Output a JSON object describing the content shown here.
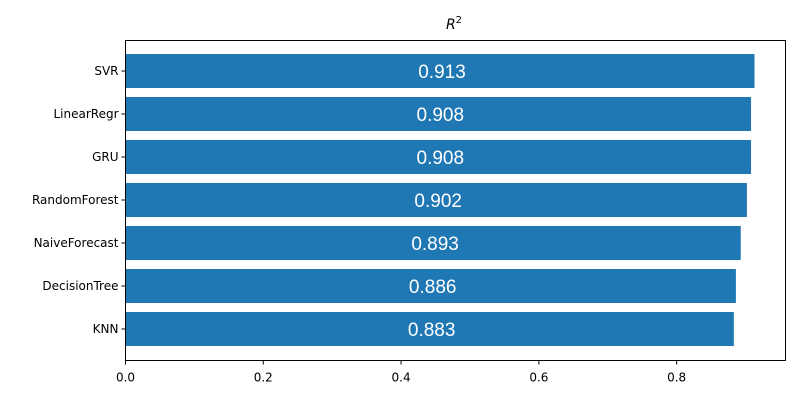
{
  "chart_data": {
    "type": "bar",
    "orientation": "horizontal",
    "title": "R",
    "title_superscript": "2",
    "categories": [
      "SVR",
      "LinearRegr",
      "GRU",
      "RandomForest",
      "NaiveForecast",
      "DecisionTree",
      "KNN"
    ],
    "values": [
      0.913,
      0.908,
      0.908,
      0.902,
      0.893,
      0.886,
      0.883
    ],
    "data_labels": [
      "0.913",
      "0.908",
      "0.908",
      "0.902",
      "0.893",
      "0.886",
      "0.883"
    ],
    "xlim": [
      0.0,
      0.958
    ],
    "x_ticks": [
      0.0,
      0.2,
      0.4,
      0.6,
      0.8
    ],
    "x_tick_labels": [
      "0.0",
      "0.2",
      "0.4",
      "0.6",
      "0.8"
    ],
    "xlabel": "",
    "ylabel": "",
    "grid": false,
    "legend": "none",
    "bar_color": "#1f77b4",
    "label_color": "#ffffff"
  }
}
